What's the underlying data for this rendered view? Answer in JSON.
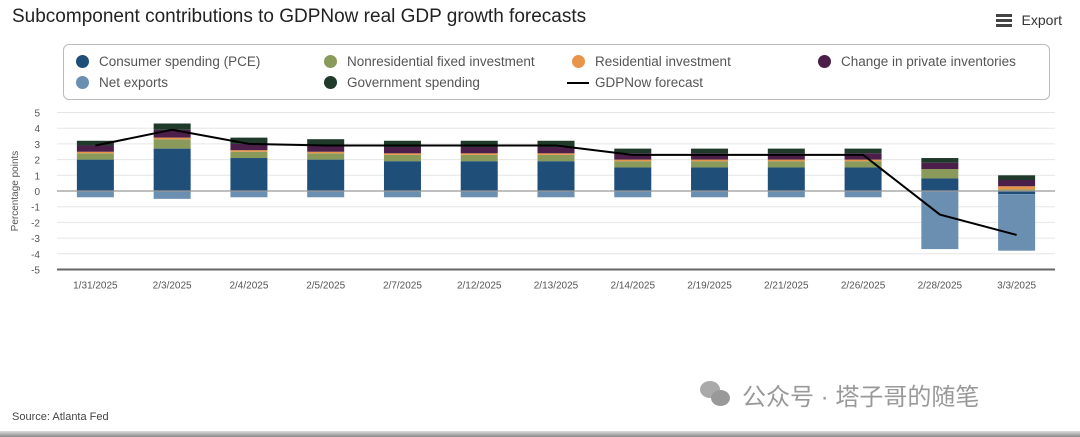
{
  "header": {
    "title": "Subcomponent contributions to GDPNow real GDP growth forecasts",
    "export_label": "Export",
    "export_icon": "hamburger-menu-icon"
  },
  "footer": {
    "source": "Source: Atlanta Fed",
    "watermark": "公众号 · 塔子哥的随笔",
    "watermark_icon": "wechat-icon"
  },
  "colors": {
    "pce": "#1f4e79",
    "net_exports": "#6a8fb0",
    "nonres": "#8a9a5b",
    "gov": "#1f3a2a",
    "resid": "#e8954a",
    "inventories": "#4b1f4a",
    "forecast": "#000000"
  },
  "chart_data": {
    "type": "bar",
    "stacked": true,
    "title": "Subcomponent contributions to GDPNow real GDP growth forecasts",
    "xlabel": "",
    "ylabel": "Percentage points",
    "ylim": [
      -5,
      5
    ],
    "yticks": [
      "5",
      "4",
      "3",
      "2",
      "1",
      "0",
      "-1",
      "-2",
      "-3",
      "-4",
      "-5"
    ],
    "grid": true,
    "legend_position": "top",
    "categories": [
      "1/31/2025",
      "2/3/2025",
      "2/4/2025",
      "2/5/2025",
      "2/7/2025",
      "2/12/2025",
      "2/13/2025",
      "2/14/2025",
      "2/19/2025",
      "2/21/2025",
      "2/26/2025",
      "2/28/2025",
      "3/3/2025"
    ],
    "series": [
      {
        "key": "pce",
        "name": "Consumer spending (PCE)",
        "values": [
          2.0,
          2.7,
          2.1,
          2.0,
          1.9,
          1.9,
          1.9,
          1.5,
          1.5,
          1.5,
          1.5,
          0.8,
          -0.2
        ]
      },
      {
        "key": "nonres",
        "name": "Nonresidential fixed investment",
        "values": [
          0.4,
          0.6,
          0.4,
          0.4,
          0.4,
          0.4,
          0.4,
          0.4,
          0.4,
          0.4,
          0.4,
          0.6,
          0.1
        ]
      },
      {
        "key": "resid",
        "name": "Residential investment",
        "values": [
          0.1,
          0.1,
          0.1,
          0.1,
          0.1,
          0.1,
          0.1,
          0.1,
          0.1,
          0.1,
          0.1,
          0.0,
          0.2
        ]
      },
      {
        "key": "inventories",
        "name": "Change in private inventories",
        "values": [
          0.4,
          0.5,
          0.4,
          0.4,
          0.4,
          0.4,
          0.4,
          0.4,
          0.4,
          0.4,
          0.4,
          0.4,
          0.4
        ]
      },
      {
        "key": "net_exports",
        "name": "Net exports",
        "values": [
          -0.4,
          -0.5,
          -0.4,
          -0.4,
          -0.4,
          -0.4,
          -0.4,
          -0.4,
          -0.4,
          -0.4,
          -0.4,
          -3.7,
          -3.6
        ]
      },
      {
        "key": "gov",
        "name": "Government spending",
        "values": [
          0.3,
          0.4,
          0.4,
          0.4,
          0.4,
          0.4,
          0.4,
          0.3,
          0.3,
          0.3,
          0.3,
          0.3,
          0.3
        ]
      }
    ],
    "line": {
      "key": "forecast",
      "name": "GDPNow forecast",
      "values": [
        2.9,
        3.9,
        3.0,
        2.9,
        2.9,
        2.9,
        2.9,
        2.3,
        2.3,
        2.3,
        2.3,
        -1.5,
        -2.8
      ]
    }
  }
}
